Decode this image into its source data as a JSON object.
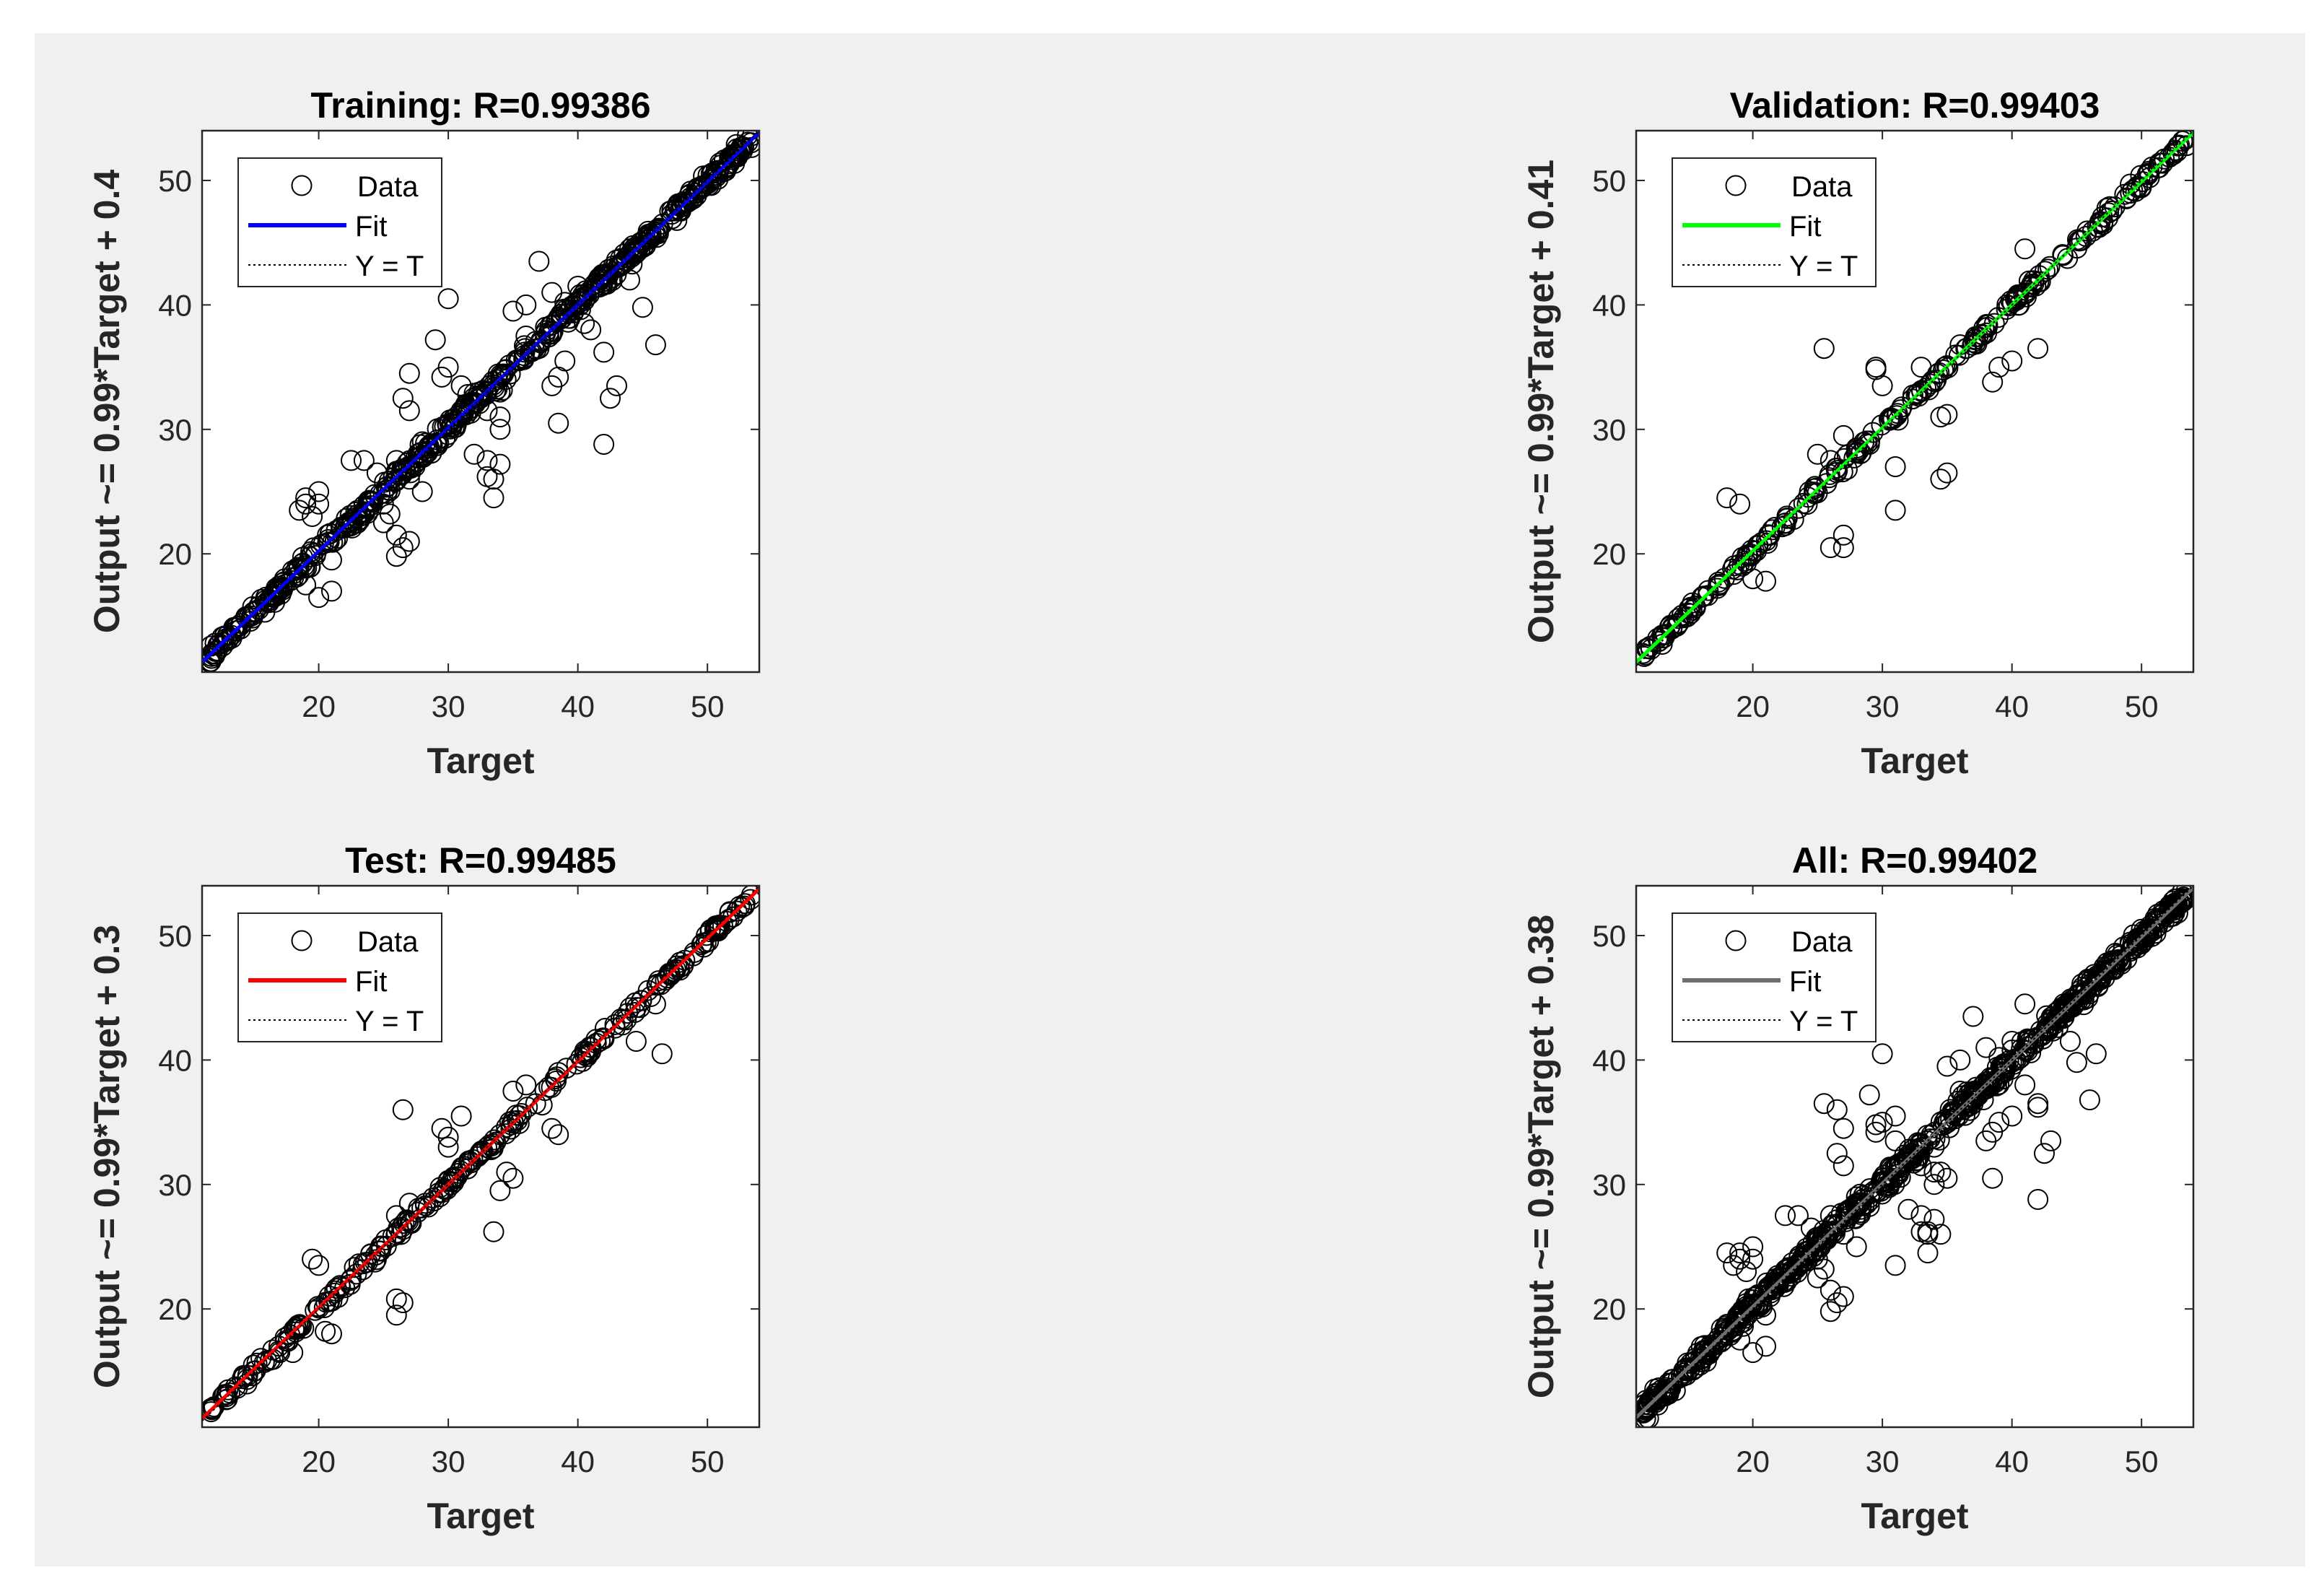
{
  "chart_data": [
    {
      "type": "scatter",
      "panel": "training",
      "title": "Training: R=0.99386",
      "xlabel": "Target",
      "ylabel": "Output ~= 0.99*Target + 0.4",
      "xlim": [
        11,
        54
      ],
      "ylim": [
        10.5,
        54
      ],
      "xticks": [
        20,
        30,
        40,
        50
      ],
      "yticks": [
        20,
        30,
        40,
        50
      ],
      "fit": {
        "slope": 0.99,
        "intercept": 0.4,
        "color": "#0000ff"
      },
      "legend": {
        "position": "top-left",
        "entries": [
          "Data",
          "Fit",
          "Y = T"
        ]
      },
      "outliers": [
        [
          30,
          40.5
        ],
        [
          29,
          37.2
        ],
        [
          29.5,
          34.2
        ],
        [
          30,
          35
        ],
        [
          35,
          39.5
        ],
        [
          36,
          40
        ],
        [
          37,
          43.5
        ],
        [
          38,
          41
        ],
        [
          39,
          40.2
        ],
        [
          40,
          41.5
        ],
        [
          41,
          38
        ],
        [
          42,
          36.2
        ],
        [
          43,
          33.5
        ],
        [
          42.5,
          32.5
        ],
        [
          42,
          28.8
        ],
        [
          38.5,
          34.2
        ],
        [
          38,
          33.5
        ],
        [
          38.5,
          30.5
        ],
        [
          46,
          36.8
        ],
        [
          45,
          39.8
        ],
        [
          44,
          44.5
        ],
        [
          33,
          26.2
        ],
        [
          33.5,
          26
        ],
        [
          33,
          27.5
        ],
        [
          34,
          27.2
        ],
        [
          33.5,
          24.5
        ],
        [
          32,
          28
        ],
        [
          34,
          30
        ],
        [
          34,
          31
        ],
        [
          33,
          31.5
        ],
        [
          31,
          31.5
        ],
        [
          26,
          19.8
        ],
        [
          26.5,
          20.5
        ],
        [
          27,
          21
        ],
        [
          26,
          21.5
        ],
        [
          25,
          24
        ],
        [
          25.5,
          23.2
        ],
        [
          20,
          24
        ],
        [
          19,
          24
        ],
        [
          20,
          25
        ],
        [
          18.5,
          23.5
        ],
        [
          19.5,
          23
        ],
        [
          19,
          24.5
        ],
        [
          21,
          19.5
        ],
        [
          20,
          16.5
        ],
        [
          19,
          17.5
        ],
        [
          21,
          17
        ],
        [
          22.5,
          27.5
        ],
        [
          23.5,
          27.5
        ],
        [
          27,
          34.5
        ],
        [
          26.5,
          32.5
        ],
        [
          27,
          31.5
        ],
        [
          28,
          29
        ],
        [
          26,
          27.5
        ],
        [
          27,
          26
        ],
        [
          36,
          37.5
        ],
        [
          37,
          36.5
        ],
        [
          34,
          33
        ],
        [
          31,
          33.5
        ],
        [
          31.5,
          32.8
        ],
        [
          40.5,
          38.5
        ],
        [
          44,
          42
        ],
        [
          37.5,
          38.2
        ],
        [
          24.5,
          26.5
        ],
        [
          25,
          22.5
        ],
        [
          28,
          25
        ],
        [
          39,
          35.5
        ]
      ]
    },
    {
      "type": "scatter",
      "panel": "validation",
      "title": "Validation: R=0.99403",
      "xlabel": "Target",
      "ylabel": "Output ~= 0.99*Target + 0.41",
      "xlim": [
        11,
        54
      ],
      "ylim": [
        10.5,
        54
      ],
      "xticks": [
        20,
        30,
        40,
        50
      ],
      "yticks": [
        20,
        30,
        40,
        50
      ],
      "fit": {
        "slope": 0.99,
        "intercept": 0.41,
        "color": "#00ff00"
      },
      "legend": {
        "position": "top-left",
        "entries": [
          "Data",
          "Fit",
          "Y = T"
        ]
      },
      "outliers": [
        [
          25.5,
          36.5
        ],
        [
          29.5,
          34.8
        ],
        [
          30,
          33.5
        ],
        [
          29.5,
          35
        ],
        [
          18,
          24.5
        ],
        [
          19,
          24
        ],
        [
          26,
          20.5
        ],
        [
          27,
          21.5
        ],
        [
          27,
          20.5
        ],
        [
          34.5,
          26
        ],
        [
          35,
          26.5
        ],
        [
          34.5,
          31
        ],
        [
          35,
          31.2
        ],
        [
          31,
          23.5
        ],
        [
          41,
          44.5
        ],
        [
          42,
          36.5
        ],
        [
          40,
          35.5
        ],
        [
          39,
          35
        ],
        [
          38.5,
          33.8
        ],
        [
          37,
          37
        ],
        [
          36,
          36.8
        ],
        [
          33,
          35
        ],
        [
          25,
          28
        ],
        [
          26,
          27.5
        ],
        [
          28,
          28.5
        ],
        [
          21,
          17.8
        ],
        [
          20,
          18
        ],
        [
          31,
          27
        ],
        [
          29,
          28.8
        ],
        [
          27,
          29.5
        ]
      ]
    },
    {
      "type": "scatter",
      "panel": "test",
      "title": "Test: R=0.99485",
      "xlabel": "Target",
      "ylabel": "Output ~= 0.99*Target + 0.3",
      "xlim": [
        11,
        54
      ],
      "ylim": [
        10.5,
        54
      ],
      "xticks": [
        20,
        30,
        40,
        50
      ],
      "yticks": [
        20,
        30,
        40,
        50
      ],
      "fit": {
        "slope": 0.99,
        "intercept": 0.3,
        "color": "#ff0000"
      },
      "legend": {
        "position": "top-left",
        "entries": [
          "Data",
          "Fit",
          "Y = T"
        ]
      },
      "outliers": [
        [
          26.5,
          36
        ],
        [
          29.5,
          34.5
        ],
        [
          30,
          33
        ],
        [
          30,
          33.8
        ],
        [
          31,
          35.5
        ],
        [
          19.5,
          24
        ],
        [
          20,
          23.5
        ],
        [
          21,
          18
        ],
        [
          20.5,
          18.2
        ],
        [
          26,
          19.5
        ],
        [
          26.5,
          20.5
        ],
        [
          26,
          20.8
        ],
        [
          33.5,
          26.2
        ],
        [
          34,
          29.5
        ],
        [
          34.5,
          31
        ],
        [
          35,
          30.5
        ],
        [
          38,
          34.5
        ],
        [
          38.5,
          34
        ],
        [
          38.5,
          39
        ],
        [
          36,
          38
        ],
        [
          35,
          37.5
        ],
        [
          44.5,
          41.5
        ],
        [
          46.5,
          40.5
        ],
        [
          46,
          44.5
        ],
        [
          17,
          16.5
        ],
        [
          18,
          16.5
        ],
        [
          26,
          27.5
        ],
        [
          27,
          28.5
        ],
        [
          13,
          13.5
        ],
        [
          15,
          15
        ]
      ]
    },
    {
      "type": "scatter",
      "panel": "all",
      "title": "All: R=0.99402",
      "xlabel": "Target",
      "ylabel": "Output ~= 0.99*Target + 0.38",
      "xlim": [
        11,
        54
      ],
      "ylim": [
        10.5,
        54
      ],
      "xticks": [
        20,
        30,
        40,
        50
      ],
      "yticks": [
        20,
        30,
        40,
        50
      ],
      "fit": {
        "slope": 0.99,
        "intercept": 0.38,
        "color": "#6e6e6e"
      },
      "legend": {
        "position": "top-left",
        "entries": [
          "Data",
          "Fit",
          "Y = T"
        ]
      },
      "outliers": [
        [
          30,
          40.5
        ],
        [
          29,
          37.2
        ],
        [
          29.5,
          34.2
        ],
        [
          30,
          35
        ],
        [
          35,
          39.5
        ],
        [
          36,
          40
        ],
        [
          37,
          43.5
        ],
        [
          38,
          41
        ],
        [
          39,
          40.2
        ],
        [
          40,
          41.5
        ],
        [
          41,
          38
        ],
        [
          42,
          36.2
        ],
        [
          43,
          33.5
        ],
        [
          42.5,
          32.5
        ],
        [
          42,
          28.8
        ],
        [
          38.5,
          34.2
        ],
        [
          38,
          33.5
        ],
        [
          38.5,
          30.5
        ],
        [
          46,
          36.8
        ],
        [
          45,
          39.8
        ],
        [
          44,
          44.5
        ],
        [
          33,
          26.2
        ],
        [
          33.5,
          26
        ],
        [
          33,
          27.5
        ],
        [
          34,
          27.2
        ],
        [
          33.5,
          24.5
        ],
        [
          32,
          28
        ],
        [
          34,
          30
        ],
        [
          34,
          31
        ],
        [
          33,
          31.5
        ],
        [
          31,
          31.5
        ],
        [
          26,
          19.8
        ],
        [
          26.5,
          20.5
        ],
        [
          27,
          21
        ],
        [
          26,
          21.5
        ],
        [
          25,
          24
        ],
        [
          25.5,
          23.2
        ],
        [
          20,
          24
        ],
        [
          19,
          24
        ],
        [
          20,
          25
        ],
        [
          18.5,
          23.5
        ],
        [
          19.5,
          23
        ],
        [
          19,
          24.5
        ],
        [
          21,
          19.5
        ],
        [
          20,
          16.5
        ],
        [
          19,
          17.5
        ],
        [
          21,
          17
        ],
        [
          22.5,
          27.5
        ],
        [
          23.5,
          27.5
        ],
        [
          27,
          34.5
        ],
        [
          26.5,
          32.5
        ],
        [
          27,
          31.5
        ],
        [
          28,
          29
        ],
        [
          26,
          27.5
        ],
        [
          27,
          26
        ],
        [
          36,
          37.5
        ],
        [
          37,
          36.5
        ],
        [
          34,
          33
        ],
        [
          31,
          33.5
        ],
        [
          25.5,
          36.5
        ],
        [
          26.5,
          36
        ],
        [
          29.5,
          34.8
        ],
        [
          31,
          35.5
        ],
        [
          34.5,
          31
        ],
        [
          35,
          30.5
        ],
        [
          31,
          23.5
        ],
        [
          41,
          44.5
        ],
        [
          42,
          36.5
        ],
        [
          46.5,
          40.5
        ],
        [
          40,
          35.5
        ],
        [
          44.5,
          41.5
        ],
        [
          18,
          24.5
        ],
        [
          33.5,
          26.2
        ],
        [
          34.5,
          26
        ],
        [
          39,
          35
        ],
        [
          37,
          37
        ],
        [
          28,
          25
        ],
        [
          24.5,
          26.5
        ],
        [
          25,
          22.5
        ]
      ]
    }
  ]
}
